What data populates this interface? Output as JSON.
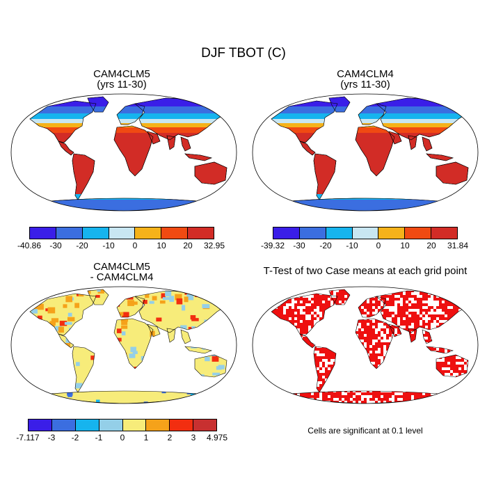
{
  "figure": {
    "title": "DJF TBOT (C)"
  },
  "panels": [
    {
      "id": "p1",
      "title_line1": "CAM4CLM5",
      "title_line2": "(yrs 11-30)",
      "colorbar": {
        "labels": [
          "-40.86",
          "-30",
          "-20",
          "-10",
          "0",
          "10",
          "20",
          "32.95"
        ],
        "colors": [
          "#3a1ee8",
          "#3b6ee0",
          "#16b4ee",
          "#c8e6f2",
          "#f5b21a",
          "#f04a12",
          "#d22c26"
        ]
      }
    },
    {
      "id": "p2",
      "title_line1": "CAM4CLM4",
      "title_line2": "(yrs 11-30)",
      "colorbar": {
        "labels": [
          "-39.32",
          "-30",
          "-20",
          "-10",
          "0",
          "10",
          "20",
          "31.84"
        ],
        "colors": [
          "#3a1ee8",
          "#3b6ee0",
          "#16b4ee",
          "#c8e6f2",
          "#f5b21a",
          "#f04a12",
          "#d22c26"
        ]
      }
    },
    {
      "id": "p3",
      "title_line1": "CAM4CLM5",
      "title_line2": "- CAM4CLM4",
      "colorbar": {
        "labels": [
          "-7.117",
          "-3",
          "-2",
          "-1",
          "0",
          "1",
          "2",
          "3",
          "4.975"
        ],
        "colors": [
          "#3a1ee8",
          "#3b6ee0",
          "#16b4ee",
          "#94cfe8",
          "#f7ec7a",
          "#f5a21a",
          "#f22e10",
          "#c83030"
        ]
      }
    },
    {
      "id": "p4",
      "title_line1": "T-Test of two Case means at each grid point",
      "title_line2": "",
      "note": "Cells are significant at 0.1 level",
      "sig_color": "#ee1010"
    }
  ]
}
